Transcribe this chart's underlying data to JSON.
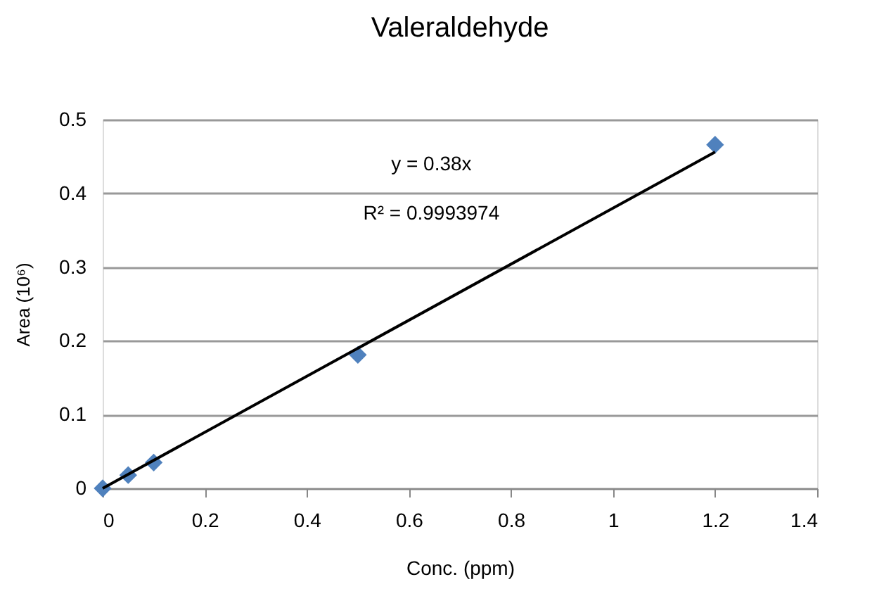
{
  "chart_data": {
    "type": "scatter",
    "title": "Valeraldehyde",
    "xlabel": "Conc. (ppm)",
    "ylabel": "Area (10⁶)",
    "series": [
      {
        "color": "#4f81bd",
        "marker": "diamond",
        "x": [
          0,
          0.05,
          0.1,
          0.5,
          1.2
        ],
        "values": [
          0,
          0.018,
          0.035,
          0.181,
          0.466
        ]
      },
      {
        "type": "line",
        "color": "#000000",
        "marker": "none",
        "line_style": "solid",
        "x": [
          0,
          1.2
        ],
        "values": [
          0,
          0.456
        ]
      }
    ],
    "annotations": [
      "y = 0.38x",
      "R² = 0.9993974"
    ],
    "xlim": [
      0,
      1.4
    ],
    "xticks": [
      0,
      0.2,
      0.4,
      0.6,
      0.8,
      1,
      1.2,
      1.4
    ],
    "ylim": [
      0,
      0.5
    ],
    "yticks": [
      0,
      0.1,
      0.2,
      0.3,
      0.4,
      0.5
    ],
    "grid": "y"
  }
}
